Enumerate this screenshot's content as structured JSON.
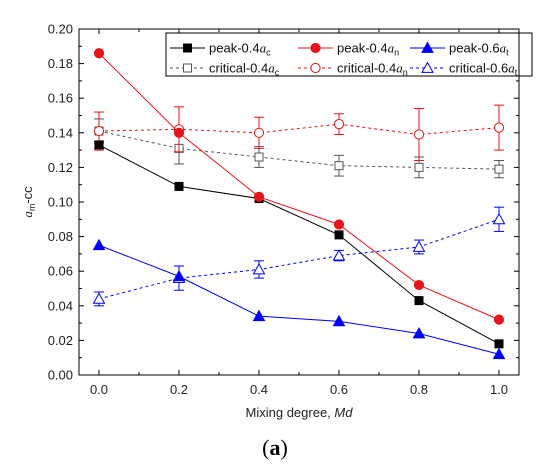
{
  "chart_data": {
    "type": "line",
    "panel_label": "a",
    "xlabel": "Mixing degree, Md",
    "ylabel": "a_m-cc",
    "xlim": [
      -0.05,
      1.05
    ],
    "ylim": [
      0.0,
      0.2
    ],
    "xticks": [
      "0.0",
      "0.2",
      "0.4",
      "0.6",
      "0.8",
      "1.0"
    ],
    "yticks": [
      "0.00",
      "0.02",
      "0.04",
      "0.06",
      "0.08",
      "0.10",
      "0.12",
      "0.14",
      "0.16",
      "0.18",
      "0.20"
    ],
    "legend_position": "top-right",
    "x": [
      0.0,
      0.2,
      0.4,
      0.6,
      0.8,
      1.0
    ],
    "series": [
      {
        "name": "peak-0.4a_c",
        "color": "#000000",
        "marker": "square",
        "filled": true,
        "dashed": false,
        "values": [
          0.133,
          0.109,
          0.102,
          0.081,
          0.043,
          0.018
        ],
        "errors": [
          0.002,
          0,
          0,
          0,
          0,
          0
        ]
      },
      {
        "name": "peak-0.4a_n",
        "color": "#e8141b",
        "marker": "circle",
        "filled": true,
        "dashed": false,
        "values": [
          0.186,
          0.14,
          0.103,
          0.087,
          0.052,
          0.032
        ],
        "errors": [
          0,
          0,
          0,
          0,
          0,
          0
        ]
      },
      {
        "name": "peak-0.6a_t",
        "color": "#0000ff",
        "marker": "triangle",
        "filled": true,
        "dashed": false,
        "values": [
          0.075,
          0.057,
          0.034,
          0.031,
          0.024,
          0.012
        ],
        "errors": [
          0,
          0,
          0,
          0,
          0,
          0
        ]
      },
      {
        "name": "critical-0.4a_c",
        "color": "#555555",
        "marker": "square",
        "filled": false,
        "dashed": true,
        "values": [
          0.141,
          0.131,
          0.126,
          0.121,
          0.12,
          0.119
        ],
        "errors": [
          0.007,
          0.009,
          0.006,
          0.006,
          0.006,
          0.005
        ]
      },
      {
        "name": "critical-0.4a_n",
        "color": "#e8141b",
        "marker": "circle",
        "filled": false,
        "dashed": true,
        "values": [
          0.141,
          0.142,
          0.14,
          0.145,
          0.139,
          0.143
        ],
        "errors": [
          0.011,
          0.013,
          0.009,
          0.006,
          0.015,
          0.013
        ]
      },
      {
        "name": "critical-0.6a_t",
        "color": "#0000ff",
        "marker": "triangle",
        "filled": false,
        "dashed": true,
        "values": [
          0.044,
          0.056,
          0.061,
          0.069,
          0.074,
          0.09
        ],
        "errors": [
          0.004,
          0.007,
          0.005,
          0.003,
          0.004,
          0.007
        ]
      }
    ],
    "legend_rows": [
      [
        {
          "series": 0,
          "text": "peak-0.4",
          "sub": "c"
        },
        {
          "series": 1,
          "text": "peak-0.4",
          "sub": "n"
        },
        {
          "series": 2,
          "text": "peak-0.6",
          "sub": "t"
        }
      ],
      [
        {
          "series": 3,
          "text": "critical-0.4",
          "sub": "c"
        },
        {
          "series": 4,
          "text": "critical-0.4",
          "sub": "n"
        },
        {
          "series": 5,
          "text": "critical-0.6",
          "sub": "t"
        }
      ]
    ]
  }
}
